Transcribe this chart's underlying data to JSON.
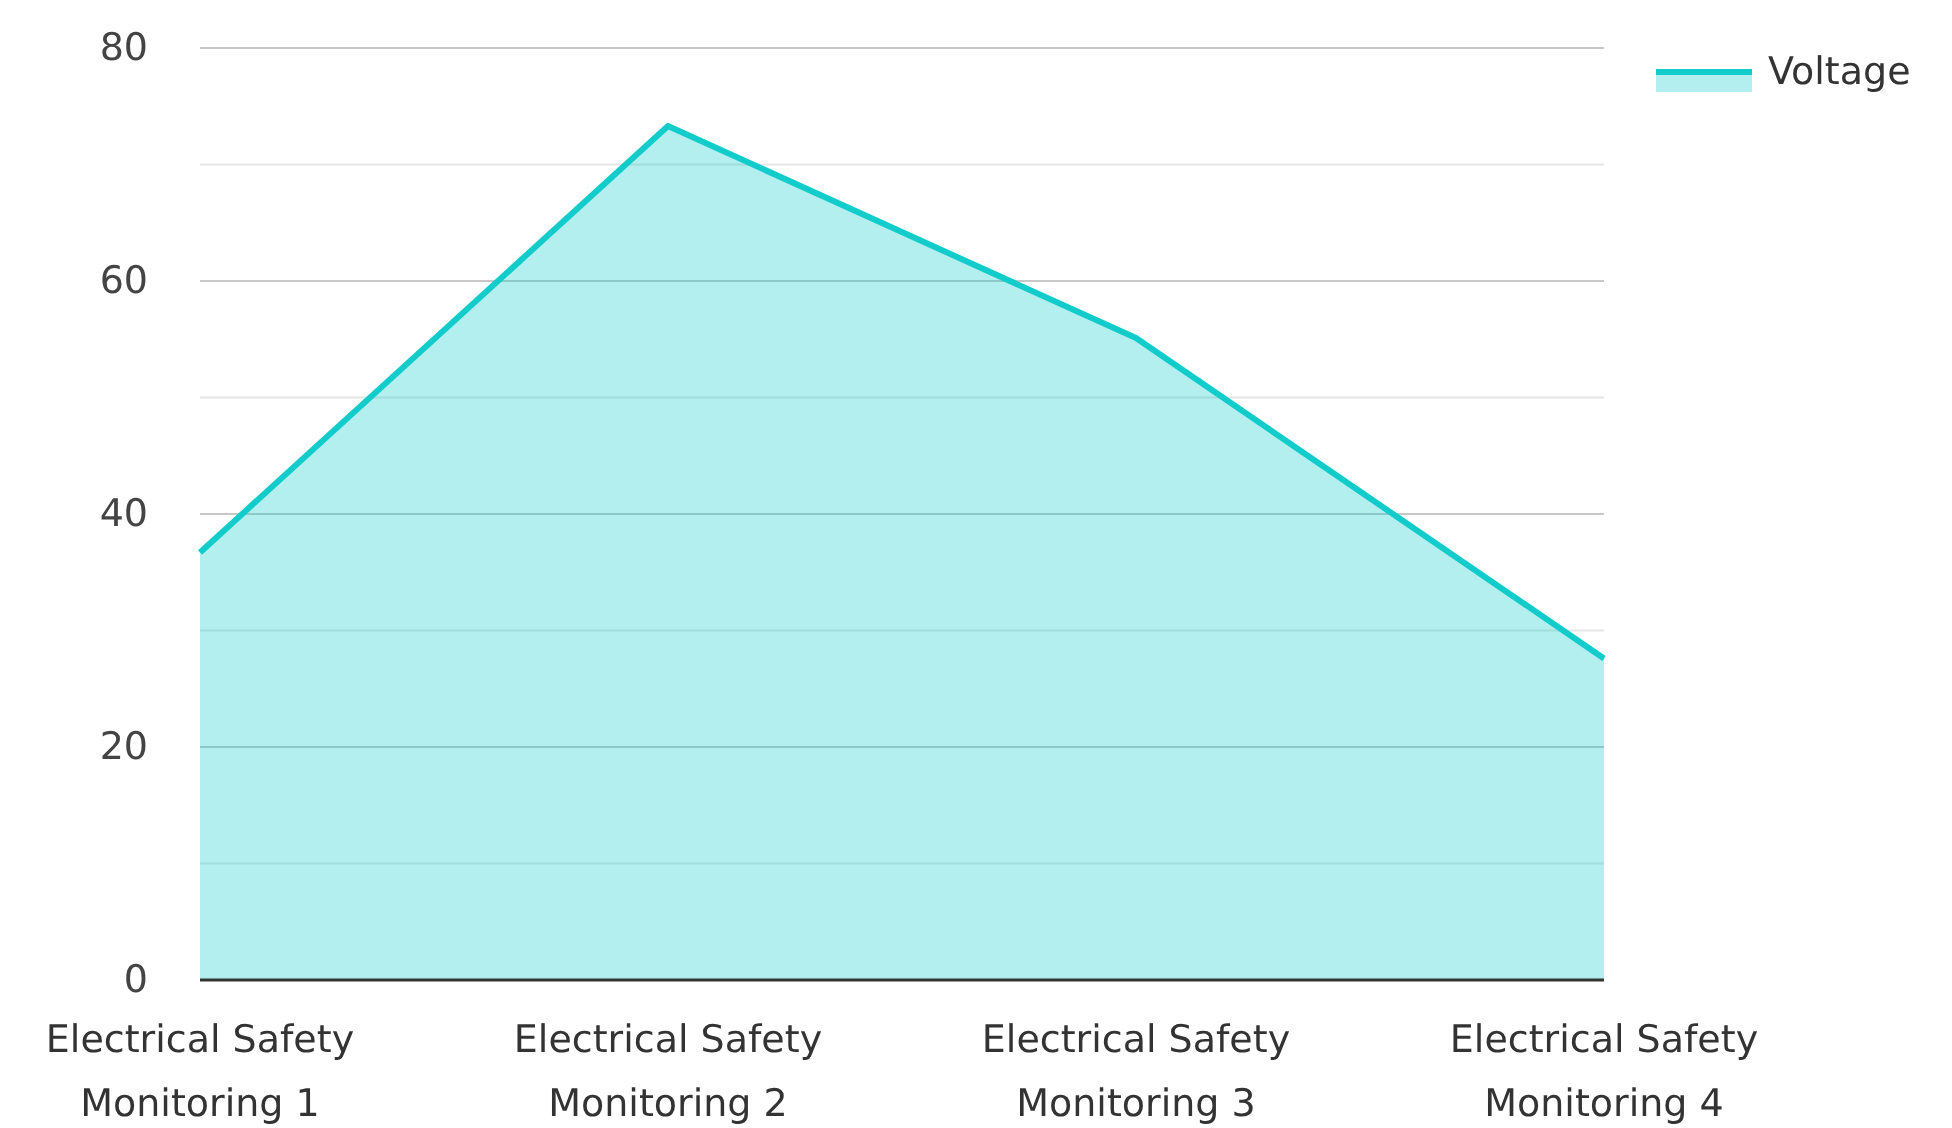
{
  "chart_data": {
    "type": "area",
    "categories": [
      "Electrical Safety Monitoring 1",
      "Electrical Safety Monitoring 2",
      "Electrical Safety Monitoring 3",
      "Electrical Safety Monitoring 4"
    ],
    "series": [
      {
        "name": "Voltage",
        "color": "#12cccc",
        "values": [
          36.7,
          73.3,
          55.1,
          27.6
        ]
      }
    ],
    "ylim": [
      0,
      80
    ],
    "yticks": [
      0,
      {
        "value": 10,
        "label": null
      },
      20,
      {
        "value": 30,
        "label": null
      },
      40,
      {
        "value": 50,
        "label": null
      },
      60,
      {
        "value": 70,
        "label": null
      },
      80
    ],
    "grid": "y",
    "legend": "top right"
  }
}
